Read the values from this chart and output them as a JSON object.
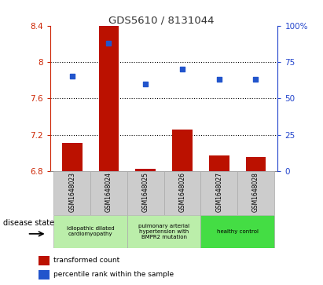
{
  "title": "GDS5610 / 8131044",
  "samples": [
    "GSM1648023",
    "GSM1648024",
    "GSM1648025",
    "GSM1648026",
    "GSM1648027",
    "GSM1648028"
  ],
  "bar_values": [
    7.11,
    8.4,
    6.82,
    7.26,
    6.97,
    6.95
  ],
  "bar_base": 6.8,
  "dot_values": [
    65,
    88,
    60,
    70,
    63,
    63
  ],
  "ylim_left": [
    6.8,
    8.4
  ],
  "ylim_right": [
    0,
    100
  ],
  "yticks_left": [
    6.8,
    7.2,
    7.6,
    8.0,
    8.4
  ],
  "ytick_labels_left": [
    "6.8",
    "7.2",
    "7.6",
    "8",
    "8.4"
  ],
  "yticks_right": [
    0,
    25,
    50,
    75,
    100
  ],
  "ytick_labels_right": [
    "0",
    "25",
    "50",
    "75",
    "100%"
  ],
  "hlines": [
    7.2,
    7.6,
    8.0
  ],
  "bar_color": "#bb1100",
  "dot_color": "#2255cc",
  "groups": [
    {
      "label": "idiopathic dilated\ncardiomyopathy",
      "indices": [
        0,
        1
      ],
      "color": "#bbeeaa"
    },
    {
      "label": "pulmonary arterial\nhypertension with\nBMPR2 mutation",
      "indices": [
        2,
        3
      ],
      "color": "#bbeeaa"
    },
    {
      "label": "healthy control",
      "indices": [
        4,
        5
      ],
      "color": "#44dd44"
    }
  ],
  "disease_state_label": "disease state",
  "legend_bar_label": "transformed count",
  "legend_dot_label": "percentile rank within the sample",
  "title_color": "#333333",
  "left_axis_color": "#cc2200",
  "right_axis_color": "#2244cc",
  "bar_width": 0.55,
  "grid_color": "#000000"
}
